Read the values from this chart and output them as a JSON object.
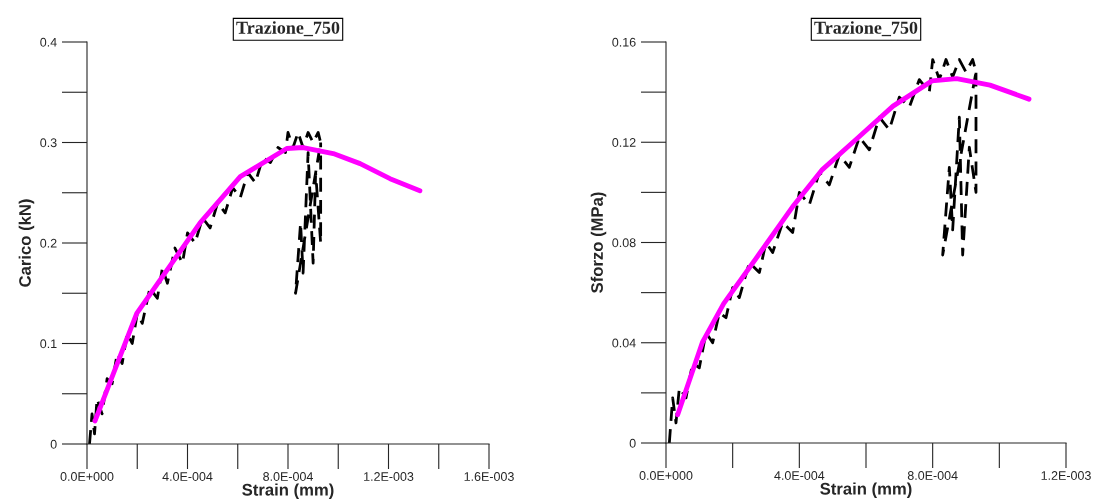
{
  "chart_data": [
    {
      "type": "line",
      "title": "Trazione_750",
      "xlabel": "Strain (mm)",
      "ylabel": "Carico (kN)",
      "xlim": [
        0,
        0.0016
      ],
      "ylim": [
        0,
        0.4
      ],
      "xticks": [
        {
          "value": 0,
          "label": "0.0E+000"
        },
        {
          "value": 0.0004,
          "label": "4.0E-004"
        },
        {
          "value": 0.0008,
          "label": "8.0E-004"
        },
        {
          "value": 0.0012,
          "label": "1.2E-003"
        },
        {
          "value": 0.0016,
          "label": "1.6E-003"
        }
      ],
      "yticks": [
        0,
        0.1,
        0.2,
        0.3,
        0.4
      ],
      "grid": false,
      "legend": false,
      "marker": "none",
      "series": [
        {
          "color": "#000000",
          "line_style": "dashed",
          "x": [
            1e-05,
            2e-05,
            3e-05,
            4e-05,
            6e-05,
            8e-05,
            0.0001,
            0.00012,
            0.00014,
            0.00016,
            0.00018,
            0.0002,
            0.00022,
            0.00025,
            0.00028,
            0.0003,
            0.00032,
            0.00035,
            0.00038,
            0.0004,
            0.00043,
            0.00046,
            0.00049,
            0.00052,
            0.00055,
            0.00058,
            0.00061,
            0.00064,
            0.00067,
            0.0007,
            0.00073,
            0.00076,
            0.00079,
            0.0008,
            0.00082,
            0.00084,
            0.00086,
            0.00088,
            0.0009,
            0.00092,
            0.00093,
            0.00083,
            0.00085,
            0.00086,
            0.00088,
            0.0009,
            0.00091,
            0.00093,
            0.00093
          ],
          "values": [
            0.0,
            0.03,
            0.01,
            0.045,
            0.03,
            0.065,
            0.06,
            0.09,
            0.08,
            0.11,
            0.1,
            0.13,
            0.12,
            0.155,
            0.145,
            0.175,
            0.16,
            0.195,
            0.18,
            0.21,
            0.2,
            0.225,
            0.215,
            0.24,
            0.23,
            0.255,
            0.245,
            0.27,
            0.26,
            0.285,
            0.28,
            0.295,
            0.29,
            0.31,
            0.295,
            0.31,
            0.295,
            0.31,
            0.3,
            0.31,
            0.3,
            0.15,
            0.22,
            0.17,
            0.29,
            0.18,
            0.27,
            0.2,
            0.3
          ]
        },
        {
          "color": "#ff00ff",
          "line_style": "solid",
          "x": [
            3.2e-05,
            0.000198,
            0.00045,
            0.00061,
            0.000795,
            0.00086,
            0.00098,
            0.001087,
            0.001206,
            0.001325
          ],
          "values": [
            0.023,
            0.13,
            0.22,
            0.266,
            0.294,
            0.295,
            0.289,
            0.279,
            0.264,
            0.252
          ]
        }
      ]
    },
    {
      "type": "line",
      "title": "Trazione_750",
      "xlabel": "Strain (mm)",
      "ylabel": "Sforzo (MPa)",
      "xlim": [
        0,
        0.0012
      ],
      "ylim": [
        0,
        0.16
      ],
      "xticks": [
        {
          "value": 0,
          "label": "0.0E+000"
        },
        {
          "value": 0.0004,
          "label": "4.0E-004"
        },
        {
          "value": 0.0008,
          "label": "8.0E-004"
        },
        {
          "value": 0.0012,
          "label": "1.2E-003"
        }
      ],
      "yticks": [
        0,
        0.04,
        0.08,
        0.12,
        0.16
      ],
      "grid": false,
      "legend": false,
      "marker": "none",
      "series": [
        {
          "color": "#000000",
          "line_style": "dashed",
          "x": [
            1e-05,
            2e-05,
            3e-05,
            4e-05,
            6e-05,
            8e-05,
            0.0001,
            0.00012,
            0.00014,
            0.00016,
            0.00018,
            0.0002,
            0.00022,
            0.00025,
            0.00028,
            0.0003,
            0.00032,
            0.00035,
            0.00038,
            0.0004,
            0.00043,
            0.00046,
            0.00049,
            0.00052,
            0.00055,
            0.00058,
            0.00061,
            0.00064,
            0.00067,
            0.0007,
            0.00073,
            0.00076,
            0.00079,
            0.0008,
            0.00082,
            0.00084,
            0.00086,
            0.00088,
            0.0009,
            0.00092,
            0.00093,
            0.00083,
            0.00085,
            0.00086,
            0.00088,
            0.00089,
            0.00091,
            0.00093,
            0.00093
          ],
          "values": [
            0.0,
            0.018,
            0.008,
            0.022,
            0.018,
            0.032,
            0.03,
            0.044,
            0.04,
            0.052,
            0.05,
            0.062,
            0.058,
            0.072,
            0.068,
            0.08,
            0.076,
            0.088,
            0.084,
            0.1,
            0.095,
            0.108,
            0.103,
            0.115,
            0.11,
            0.122,
            0.117,
            0.13,
            0.125,
            0.138,
            0.134,
            0.145,
            0.14,
            0.153,
            0.145,
            0.153,
            0.146,
            0.153,
            0.148,
            0.153,
            0.148,
            0.075,
            0.11,
            0.085,
            0.13,
            0.075,
            0.118,
            0.1,
            0.15
          ]
        },
        {
          "color": "#ff00ff",
          "line_style": "solid",
          "x": [
            3.5e-05,
            0.000109,
            0.000173,
            0.000279,
            0.000384,
            0.000469,
            0.000575,
            0.000681,
            0.000798,
            0.000872,
            0.000972,
            0.001089
          ],
          "values": [
            0.0113,
            0.0401,
            0.0556,
            0.0753,
            0.095,
            0.1091,
            0.1217,
            0.1344,
            0.1445,
            0.1454,
            0.1428,
            0.1372
          ]
        }
      ]
    }
  ]
}
